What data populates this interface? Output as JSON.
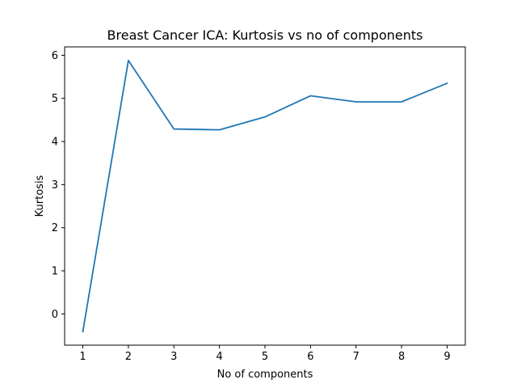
{
  "chart_data": {
    "type": "line",
    "title": "Breast Cancer ICA: Kurtosis vs no of components",
    "xlabel": "No of components",
    "ylabel": "Kurtosis",
    "x": [
      1,
      2,
      3,
      4,
      5,
      6,
      7,
      8,
      9
    ],
    "series": [
      {
        "values": [
          -0.41,
          5.88,
          4.29,
          4.27,
          4.57,
          5.06,
          4.92,
          4.92,
          5.35
        ]
      }
    ],
    "xticks": [
      "1",
      "2",
      "3",
      "4",
      "5",
      "6",
      "7",
      "8",
      "9"
    ],
    "yticks": [
      "0",
      "1",
      "2",
      "3",
      "4",
      "5",
      "6"
    ],
    "xlim": [
      0.6,
      9.4
    ],
    "ylim": [
      -0.725,
      6.195
    ],
    "grid": false,
    "line_color": "#1f77b4"
  }
}
